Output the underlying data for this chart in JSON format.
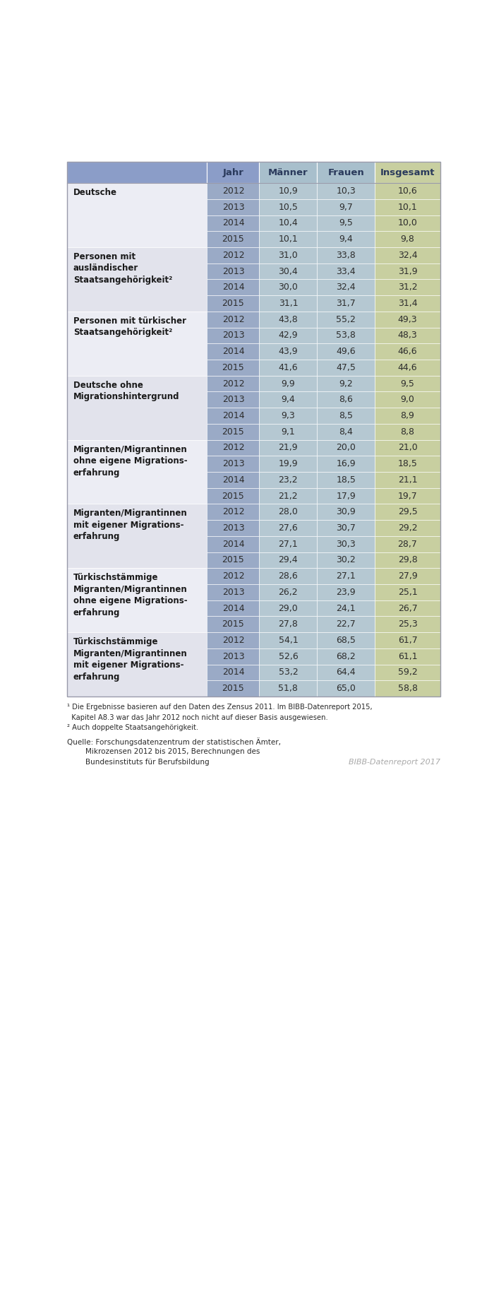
{
  "header": [
    "Jahr",
    "Männer",
    "Frauen",
    "Insgesamt"
  ],
  "groups": [
    {
      "label": "Deutsche",
      "rows": [
        [
          "2012",
          "10,9",
          "10,3",
          "10,6"
        ],
        [
          "2013",
          "10,5",
          "9,7",
          "10,1"
        ],
        [
          "2014",
          "10,4",
          "9,5",
          "10,0"
        ],
        [
          "2015",
          "10,1",
          "9,4",
          "9,8"
        ]
      ]
    },
    {
      "label": "Personen mit\nausländischer\nStaatsangehörigkeit²",
      "rows": [
        [
          "2012",
          "31,0",
          "33,8",
          "32,4"
        ],
        [
          "2013",
          "30,4",
          "33,4",
          "31,9"
        ],
        [
          "2014",
          "30,0",
          "32,4",
          "31,2"
        ],
        [
          "2015",
          "31,1",
          "31,7",
          "31,4"
        ]
      ]
    },
    {
      "label": "Personen mit türkischer\nStaatsangehörigkeit²",
      "rows": [
        [
          "2012",
          "43,8",
          "55,2",
          "49,3"
        ],
        [
          "2013",
          "42,9",
          "53,8",
          "48,3"
        ],
        [
          "2014",
          "43,9",
          "49,6",
          "46,6"
        ],
        [
          "2015",
          "41,6",
          "47,5",
          "44,6"
        ]
      ]
    },
    {
      "label": "Deutsche ohne\nMigrationshintergrund",
      "rows": [
        [
          "2012",
          "9,9",
          "9,2",
          "9,5"
        ],
        [
          "2013",
          "9,4",
          "8,6",
          "9,0"
        ],
        [
          "2014",
          "9,3",
          "8,5",
          "8,9"
        ],
        [
          "2015",
          "9,1",
          "8,4",
          "8,8"
        ]
      ]
    },
    {
      "label": "Migranten/Migrantinnen\nohne eigene Migrations-\nerfahrung",
      "rows": [
        [
          "2012",
          "21,9",
          "20,0",
          "21,0"
        ],
        [
          "2013",
          "19,9",
          "16,9",
          "18,5"
        ],
        [
          "2014",
          "23,2",
          "18,5",
          "21,1"
        ],
        [
          "2015",
          "21,2",
          "17,9",
          "19,7"
        ]
      ]
    },
    {
      "label": "Migranten/Migrantinnen\nmit eigener Migrations-\nerfahrung",
      "rows": [
        [
          "2012",
          "28,0",
          "30,9",
          "29,5"
        ],
        [
          "2013",
          "27,6",
          "30,7",
          "29,2"
        ],
        [
          "2014",
          "27,1",
          "30,3",
          "28,7"
        ],
        [
          "2015",
          "29,4",
          "30,2",
          "29,8"
        ]
      ]
    },
    {
      "label": "Türkischstämmige\nMigranten/Migrantinnen\nohne eigene Migrations-\nerfahrung",
      "rows": [
        [
          "2012",
          "28,6",
          "27,1",
          "27,9"
        ],
        [
          "2013",
          "26,2",
          "23,9",
          "25,1"
        ],
        [
          "2014",
          "29,0",
          "24,1",
          "26,7"
        ],
        [
          "2015",
          "27,8",
          "22,7",
          "25,3"
        ]
      ]
    },
    {
      "label": "Türkischstämmige\nMigranten/Migrantinnen\nmit eigener Migrations-\nerfahrung",
      "rows": [
        [
          "2012",
          "54,1",
          "68,5",
          "61,7"
        ],
        [
          "2013",
          "52,6",
          "68,2",
          "61,1"
        ],
        [
          "2014",
          "53,2",
          "64,4",
          "59,2"
        ],
        [
          "2015",
          "51,8",
          "65,0",
          "58,8"
        ]
      ]
    }
  ],
  "footnote1": "¹ Die Ergebnisse basieren auf den Daten des Zensus 2011. Im BIBB-Datenreport 2015,",
  "footnote1b": "  Kapitel A8.3 war das Jahr 2012 noch nicht auf dieser Basis ausgewiesen.",
  "footnote2": "² Auch doppelte Staatsangehörigkeit.",
  "source_line1": "Quelle: Forschungsdatenzentrum der statistischen Ämter,",
  "source_line2": "        Mikrozensen 2012 bis 2015, Berechnungen des",
  "source_line3": "        Bundesinstituts für Berufsbildung",
  "bibb": "BIBB-Datenreport 2017",
  "header_col0_color": "#8b9dc8",
  "header_col1_color": "#8b9dc8",
  "header_col2_color": "#a8bfcc",
  "header_col3_color": "#c8cfa0",
  "col1_bg": "#9aaac6",
  "col2_bg": "#b5c8d2",
  "col3_bg": "#c8cfa0",
  "label_bg_even": "#ecedf4",
  "label_bg_odd": "#e2e3ec",
  "header_text_color": "#2a3a5c",
  "data_text_color": "#2d2d2d",
  "label_text_color": "#1a1a1a",
  "border_color": "#999aaa",
  "footnote_color": "#2a2a2a",
  "source_color": "#2a2a2a",
  "bibb_color": "#aaaaaa"
}
